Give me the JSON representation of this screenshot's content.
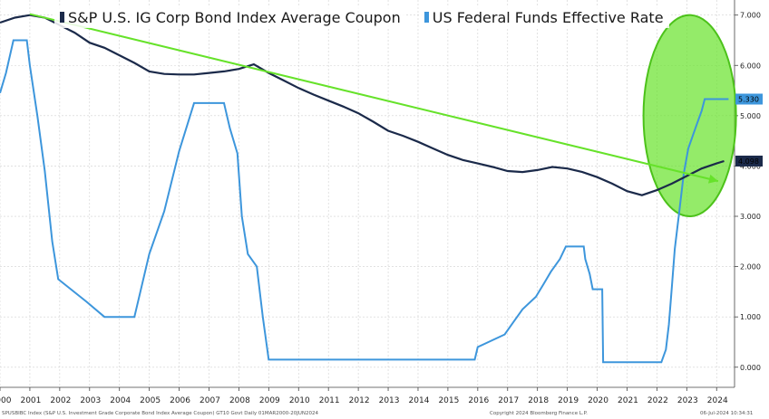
{
  "chart_data": {
    "type": "line",
    "title": "",
    "xlabel": "",
    "ylabel": "",
    "xlim": [
      2000,
      2024.6
    ],
    "ylim": [
      -0.4,
      7.3
    ],
    "x_ticks": [
      "2000",
      "2001",
      "2002",
      "2003",
      "2004",
      "2005",
      "2006",
      "2007",
      "2008",
      "2009",
      "2010",
      "2011",
      "2012",
      "2013",
      "2014",
      "2015",
      "2016",
      "2017",
      "2018",
      "2019",
      "2020",
      "2021",
      "2022",
      "2023",
      "2024"
    ],
    "y_ticks": [
      "0.000",
      "1.000",
      "2.000",
      "3.000",
      "4.000",
      "5.000",
      "6.000",
      "7.000"
    ],
    "legend_position": "top-left",
    "grid": true,
    "series": [
      {
        "name": "S&P U.S. IG Corp Bond Index Average Coupon",
        "color": "#1b2a4a",
        "last_value_label": "4.098",
        "points": [
          [
            2000,
            6.85
          ],
          [
            2000.5,
            6.95
          ],
          [
            2001,
            7.0
          ],
          [
            2001.5,
            6.95
          ],
          [
            2002,
            6.8
          ],
          [
            2002.5,
            6.65
          ],
          [
            2003,
            6.45
          ],
          [
            2003.5,
            6.35
          ],
          [
            2004,
            6.2
          ],
          [
            2004.5,
            6.05
          ],
          [
            2005,
            5.88
          ],
          [
            2005.5,
            5.83
          ],
          [
            2006,
            5.82
          ],
          [
            2006.5,
            5.82
          ],
          [
            2007,
            5.85
          ],
          [
            2007.5,
            5.88
          ],
          [
            2008,
            5.93
          ],
          [
            2008.5,
            6.02
          ],
          [
            2009,
            5.85
          ],
          [
            2009.5,
            5.7
          ],
          [
            2010,
            5.55
          ],
          [
            2010.5,
            5.42
          ],
          [
            2011,
            5.3
          ],
          [
            2011.5,
            5.18
          ],
          [
            2012,
            5.05
          ],
          [
            2012.5,
            4.88
          ],
          [
            2013,
            4.7
          ],
          [
            2013.5,
            4.6
          ],
          [
            2014,
            4.48
          ],
          [
            2014.5,
            4.35
          ],
          [
            2015,
            4.22
          ],
          [
            2015.5,
            4.12
          ],
          [
            2016,
            4.05
          ],
          [
            2016.5,
            3.98
          ],
          [
            2017,
            3.9
          ],
          [
            2017.5,
            3.88
          ],
          [
            2018,
            3.92
          ],
          [
            2018.5,
            3.98
          ],
          [
            2019,
            3.95
          ],
          [
            2019.5,
            3.88
          ],
          [
            2020,
            3.78
          ],
          [
            2020.5,
            3.65
          ],
          [
            2021,
            3.5
          ],
          [
            2021.5,
            3.42
          ],
          [
            2022,
            3.52
          ],
          [
            2022.5,
            3.65
          ],
          [
            2023,
            3.8
          ],
          [
            2023.5,
            3.95
          ],
          [
            2024,
            4.05
          ],
          [
            2024.25,
            4.098
          ]
        ]
      },
      {
        "name": "US Federal Funds Effective Rate",
        "color": "#3d96dc",
        "last_value_label": "5.330",
        "points": [
          [
            2000,
            5.45
          ],
          [
            2000.2,
            5.85
          ],
          [
            2000.45,
            6.5
          ],
          [
            2000.9,
            6.5
          ],
          [
            2001.0,
            6.0
          ],
          [
            2001.25,
            5.0
          ],
          [
            2001.5,
            3.9
          ],
          [
            2001.75,
            2.5
          ],
          [
            2001.95,
            1.75
          ],
          [
            2002.9,
            1.3
          ],
          [
            2003.5,
            1.0
          ],
          [
            2004.5,
            1.0
          ],
          [
            2004.6,
            1.25
          ],
          [
            2005.0,
            2.25
          ],
          [
            2005.5,
            3.1
          ],
          [
            2006.0,
            4.3
          ],
          [
            2006.5,
            5.25
          ],
          [
            2007.5,
            5.25
          ],
          [
            2007.7,
            4.75
          ],
          [
            2007.95,
            4.25
          ],
          [
            2008.1,
            3.0
          ],
          [
            2008.3,
            2.25
          ],
          [
            2008.6,
            2.0
          ],
          [
            2008.8,
            1.0
          ],
          [
            2009.0,
            0.15
          ],
          [
            2015.9,
            0.15
          ],
          [
            2016.0,
            0.4
          ],
          [
            2016.9,
            0.65
          ],
          [
            2017.2,
            0.9
          ],
          [
            2017.5,
            1.15
          ],
          [
            2017.95,
            1.4
          ],
          [
            2018.2,
            1.65
          ],
          [
            2018.45,
            1.9
          ],
          [
            2018.75,
            2.15
          ],
          [
            2018.95,
            2.4
          ],
          [
            2019.55,
            2.4
          ],
          [
            2019.6,
            2.15
          ],
          [
            2019.75,
            1.85
          ],
          [
            2019.85,
            1.55
          ],
          [
            2020.17,
            1.55
          ],
          [
            2020.2,
            0.1
          ],
          [
            2022.15,
            0.1
          ],
          [
            2022.3,
            0.35
          ],
          [
            2022.4,
            0.85
          ],
          [
            2022.5,
            1.6
          ],
          [
            2022.6,
            2.35
          ],
          [
            2022.75,
            3.1
          ],
          [
            2022.9,
            3.85
          ],
          [
            2023.05,
            4.35
          ],
          [
            2023.2,
            4.6
          ],
          [
            2023.35,
            4.85
          ],
          [
            2023.5,
            5.1
          ],
          [
            2023.6,
            5.33
          ],
          [
            2024.4,
            5.33
          ]
        ]
      }
    ],
    "annotations": [
      {
        "type": "trend-line",
        "color": "#66e22a",
        "from": [
          2001.0,
          7.02
        ],
        "to": [
          2024.05,
          3.7
        ]
      },
      {
        "type": "ellipse-highlight",
        "color": "#66e22a",
        "center": [
          2023.1,
          5.0
        ],
        "x_radius": 1.55,
        "y_radius": 2.0
      }
    ]
  },
  "footer": {
    "left": "SPUSBIBC Index (S&P U.S. Investment Grade Corporate Bond Index Average Coupon)  GT10  Govt  Daily 01MAR2000-20JUN2024",
    "center": "Copyright 2024 Bloomberg Finance L.P.",
    "right": "06-Jul-2024 10:34:31"
  }
}
